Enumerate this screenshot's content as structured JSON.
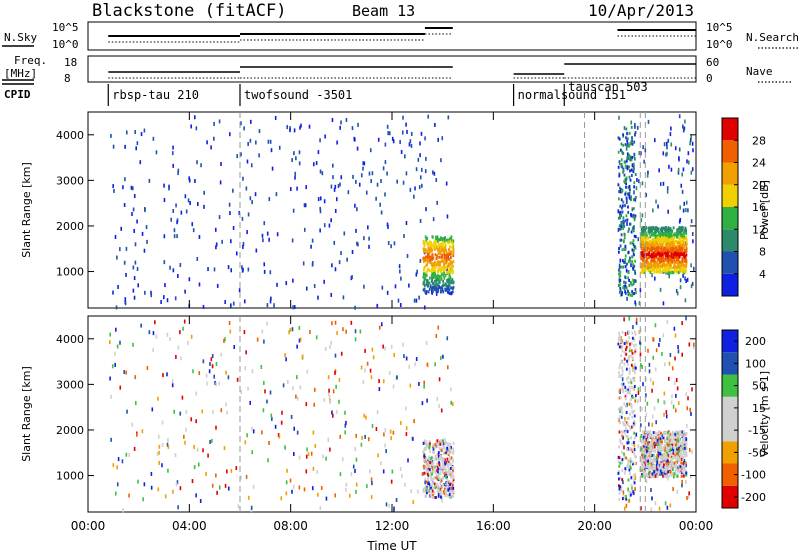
{
  "header": {
    "radar": "Blackstone (fitACF)",
    "beam": "Beam 13",
    "date": "10/Apr/2013"
  },
  "status_panels": {
    "nsky_label": "N.Sky",
    "nsky_ticks": [
      "10^5",
      "10^0"
    ],
    "nsearch_ticks": [
      "10^5",
      "10^0"
    ],
    "nsearch_label": "N.Search",
    "freq_label_1": "Freq.",
    "freq_label_2": "[MHz]",
    "freq_ticks": [
      "18",
      "8"
    ],
    "nave_ticks": [
      "60",
      "0"
    ],
    "nave_label": "Nave",
    "cpid_label": "CPID",
    "cpid_entries": [
      {
        "label": "rbsp-tau 210",
        "hour": 0.8
      },
      {
        "label": "twofsound -3501",
        "hour": 6.0
      },
      {
        "label": "normalsound 151",
        "hour": 16.8
      },
      {
        "label": "tauscan 503",
        "hour": 18.8
      }
    ]
  },
  "colors": {
    "power_scale": [
      "#1020e0",
      "#2050b0",
      "#2a8a6a",
      "#30b040",
      "#f0d000",
      "#f0a000",
      "#f06000",
      "#e00000"
    ],
    "velocity_scale": [
      "#e00000",
      "#f06000",
      "#f0a000",
      "#d0d0d0",
      "#d0d0d0",
      "#40c040",
      "#2050b0",
      "#1020e0"
    ]
  },
  "chart_data": [
    {
      "type": "heatmap",
      "name": "power",
      "ylabel": "Slant Range [km]",
      "yticks": [
        "1000",
        "2000",
        "3000",
        "4000"
      ],
      "ylim": [
        200,
        4500
      ],
      "colorbar_label": "Power [dB]",
      "colorbar_ticks": [
        "4",
        "8",
        "12",
        "16",
        "20",
        "24",
        "28"
      ],
      "colorbar_range": [
        0,
        32
      ],
      "scatter_regions": [
        {
          "hours": [
            13.2,
            14.4
          ],
          "range_km": [
            500,
            1800
          ],
          "dominant": "green-orange"
        },
        {
          "hours": [
            20.9,
            21.6
          ],
          "range_km": [
            500,
            4200
          ],
          "dominant": "blue-green"
        },
        {
          "hours": [
            21.8,
            23.6
          ],
          "range_km": [
            1000,
            2000
          ],
          "dominant": "green-red"
        }
      ]
    },
    {
      "type": "heatmap",
      "name": "velocity",
      "ylabel": "Slant Range [km]",
      "yticks": [
        "1000",
        "2000",
        "3000",
        "4000"
      ],
      "ylim": [
        200,
        4500
      ],
      "colorbar_label": "Velocity [m s-1]",
      "colorbar_ticks": [
        "-200",
        "-100",
        "-50",
        "-15",
        "15",
        "50",
        "100",
        "200"
      ],
      "colorbar_range": [
        -250,
        250
      ],
      "xlabel": "Time UT",
      "xticks": [
        "00:00",
        "04:00",
        "08:00",
        "12:00",
        "16:00",
        "20:00",
        "00:00"
      ],
      "xlim_hours": [
        0,
        24
      ]
    }
  ]
}
